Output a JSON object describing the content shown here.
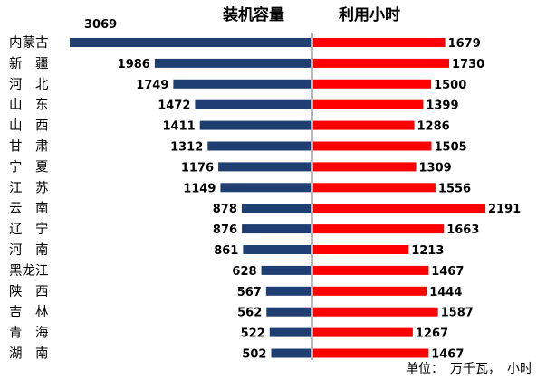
{
  "chart_data": {
    "type": "bar",
    "orientation": "horizontal",
    "layout": "butterfly",
    "categories": [
      "内蒙古",
      "新　疆",
      "河　北",
      "山　东",
      "山　西",
      "甘　肃",
      "宁　夏",
      "江　苏",
      "云　南",
      "辽　宁",
      "河　南",
      "黑龙江",
      "陕　西",
      "吉　林",
      "青　海",
      "湖　南"
    ],
    "series": [
      {
        "name": "装机容量",
        "direction": "left",
        "color": "#1f3f73",
        "values": [
          3069,
          1986,
          1749,
          1472,
          1411,
          1312,
          1176,
          1149,
          878,
          876,
          861,
          628,
          567,
          562,
          522,
          502
        ]
      },
      {
        "name": "利用小时",
        "direction": "right",
        "color": "#ff0000",
        "values": [
          1679,
          1730,
          1500,
          1399,
          1286,
          1505,
          1309,
          1556,
          2191,
          1663,
          1213,
          1467,
          1444,
          1587,
          1267,
          1467
        ]
      }
    ],
    "left_axis_max": 3069,
    "right_axis_max": 2191,
    "center_axis_color": "#a0a0a0",
    "unit_note": "单位：　万千瓦，　小时",
    "grid": false,
    "legend": "none"
  }
}
